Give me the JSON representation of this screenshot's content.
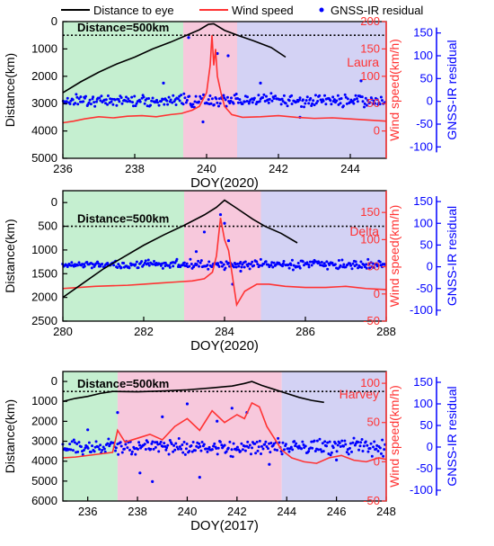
{
  "legend": {
    "distance_label": "Distance to eye",
    "wind_label": "Wind speed",
    "residual_label": "GNSS-IR residual"
  },
  "colors": {
    "distance": "#000000",
    "wind": "#ff3333",
    "residual": "#0000ff",
    "green_band": "#c5efd0",
    "pink_band": "#f7c8dc",
    "blue_band": "#d3d2f4",
    "dotted_line": "#000000"
  },
  "chart_data": [
    {
      "type": "line",
      "panel": "top",
      "storm": "Laura",
      "threshold_label": "Distance=500km",
      "threshold_km": 500,
      "xlabel": "DOY(2020)",
      "ylabel_left": "Distance(km)",
      "ylabel_right": "Wind speed(km/h)",
      "ylabel_right2": "GNSS-IR residual",
      "xlim": [
        236,
        245
      ],
      "xticks": [
        236,
        238,
        240,
        242,
        244
      ],
      "ylim_left_inverted": [
        0,
        5000
      ],
      "yticks_left": [
        0,
        1000,
        2000,
        3000,
        4000,
        5000
      ],
      "ylim_wind": [
        -50,
        200
      ],
      "yticks_wind": [
        0,
        50,
        100,
        150,
        200
      ],
      "ylim_residual": [
        -125,
        175
      ],
      "yticks_residual": [
        -100,
        -50,
        0,
        50,
        100,
        150
      ],
      "bands": [
        {
          "from": 236.0,
          "to": 239.35,
          "color": "green"
        },
        {
          "from": 239.35,
          "to": 240.85,
          "color": "pink"
        },
        {
          "from": 240.85,
          "to": 245.0,
          "color": "blue"
        }
      ],
      "series": [
        {
          "name": "Distance to eye",
          "x": [
            236.0,
            236.5,
            237.0,
            237.5,
            238.0,
            238.5,
            239.0,
            239.5,
            239.8,
            240.05,
            240.2,
            240.5,
            240.9,
            241.3,
            241.8,
            242.2
          ],
          "y": [
            2600,
            2200,
            1850,
            1550,
            1300,
            1000,
            750,
            470,
            300,
            100,
            80,
            320,
            520,
            700,
            950,
            1300
          ]
        },
        {
          "name": "Wind speed",
          "x": [
            236.0,
            236.3,
            236.6,
            237.0,
            237.4,
            237.8,
            238.2,
            238.6,
            239.0,
            239.3,
            239.6,
            239.8,
            240.0,
            240.1,
            240.15,
            240.2,
            240.25,
            240.3,
            240.4,
            240.5,
            240.7,
            241.0,
            241.5,
            242.0,
            242.5,
            243.0,
            243.5,
            244.0,
            244.5,
            245.0
          ],
          "y": [
            15,
            18,
            22,
            26,
            24,
            27,
            28,
            26,
            30,
            32,
            38,
            45,
            70,
            120,
            175,
            120,
            150,
            100,
            70,
            45,
            30,
            25,
            26,
            28,
            25,
            23,
            24,
            22,
            20,
            18
          ]
        },
        {
          "name": "GNSS-IR residual",
          "mean": 2,
          "spread": 12,
          "x_outliers": [
            238.8,
            239.5,
            239.9,
            240.3,
            240.6,
            241.5,
            242.6,
            244.3
          ],
          "y_outliers": [
            40,
            140,
            -45,
            105,
            100,
            40,
            -35,
            45
          ]
        }
      ]
    },
    {
      "type": "line",
      "panel": "middle",
      "storm": "Delta",
      "threshold_label": "Distance=500km",
      "threshold_km": 500,
      "xlabel": "DOY(2020)",
      "ylabel_left": "Distance(km)",
      "ylabel_right": "Wind speed(km/h)",
      "ylabel_right2": "GNSS-IR residual",
      "xlim": [
        280,
        288
      ],
      "xticks": [
        280,
        282,
        284,
        286,
        288
      ],
      "ylim_left_inverted": [
        -250,
        2500
      ],
      "yticks_left": [
        0,
        500,
        1000,
        1500,
        2000,
        2500
      ],
      "ylim_wind": [
        -50,
        190
      ],
      "yticks_wind": [
        -50,
        0,
        50,
        100,
        150
      ],
      "ylim_residual": [
        -125,
        175
      ],
      "yticks_residual": [
        -100,
        -50,
        0,
        50,
        100,
        150
      ],
      "bands": [
        {
          "from": 280.0,
          "to": 283.0,
          "color": "green"
        },
        {
          "from": 283.0,
          "to": 284.9,
          "color": "pink"
        },
        {
          "from": 284.9,
          "to": 288.0,
          "color": "blue"
        }
      ],
      "series": [
        {
          "name": "Distance to eye",
          "x": [
            280.0,
            280.5,
            281.0,
            281.5,
            282.0,
            282.5,
            283.0,
            283.5,
            283.8,
            284.0,
            284.3,
            284.7,
            285.0,
            285.4,
            285.8
          ],
          "y": [
            2000,
            1700,
            1400,
            1150,
            900,
            680,
            480,
            260,
            100,
            -50,
            120,
            350,
            500,
            650,
            850
          ]
        },
        {
          "name": "Wind speed",
          "x": [
            280.0,
            280.4,
            280.8,
            281.2,
            281.6,
            282.0,
            282.4,
            282.8,
            283.2,
            283.5,
            283.7,
            283.8,
            283.9,
            284.0,
            284.1,
            284.2,
            284.3,
            284.5,
            284.8,
            285.1,
            285.5,
            286.0,
            286.5,
            287.0,
            287.5,
            288.0
          ],
          "y": [
            10,
            12,
            14,
            15,
            16,
            18,
            20,
            22,
            24,
            28,
            40,
            70,
            140,
            100,
            80,
            30,
            -20,
            5,
            18,
            18,
            14,
            12,
            12,
            14,
            10,
            8
          ]
        },
        {
          "name": "GNSS-IR residual",
          "mean": 5,
          "spread": 10,
          "x_outliers": [
            283.5,
            283.9,
            284.0,
            284.1,
            284.2,
            284.4,
            283.3
          ],
          "y_outliers": [
            80,
            120,
            100,
            60,
            -40,
            -10,
            35
          ]
        }
      ]
    },
    {
      "type": "line",
      "panel": "bottom",
      "storm": "Harvey",
      "threshold_label": "Distance=500km",
      "threshold_km": 500,
      "xlabel": "DOY(2017)",
      "ylabel_left": "Distance(km)",
      "ylabel_right": "Wind speed(km/h)",
      "ylabel_right2": "GNSS-IR residual",
      "xlim": [
        235,
        248
      ],
      "xticks": [
        236,
        238,
        240,
        242,
        244,
        246,
        248
      ],
      "ylim_left_inverted": [
        -500,
        6000
      ],
      "yticks_left": [
        0,
        1000,
        2000,
        3000,
        4000,
        5000,
        6000
      ],
      "ylim_wind": [
        -50,
        115
      ],
      "yticks_wind": [
        -50,
        0,
        50,
        100
      ],
      "ylim_residual": [
        -125,
        175
      ],
      "yticks_residual": [
        -100,
        -50,
        0,
        50,
        100,
        150
      ],
      "bands": [
        {
          "from": 235.0,
          "to": 237.2,
          "color": "green"
        },
        {
          "from": 237.2,
          "to": 243.8,
          "color": "pink"
        },
        {
          "from": 243.8,
          "to": 248.0,
          "color": "blue"
        }
      ],
      "series": [
        {
          "name": "Distance to eye",
          "x": [
            235.0,
            235.5,
            236.0,
            236.5,
            237.0,
            238.0,
            239.0,
            240.0,
            241.0,
            241.8,
            242.3,
            242.6,
            243.0,
            243.5,
            244.0,
            244.5,
            245.0,
            245.5
          ],
          "y": [
            1000,
            850,
            750,
            600,
            500,
            520,
            480,
            420,
            320,
            230,
            100,
            0,
            200,
            400,
            600,
            800,
            950,
            1050
          ]
        },
        {
          "name": "Wind speed",
          "x": [
            235.0,
            235.5,
            236.0,
            236.5,
            237.0,
            237.2,
            237.5,
            238.0,
            238.5,
            239.0,
            239.5,
            240.0,
            240.5,
            241.0,
            241.5,
            242.0,
            242.3,
            242.6,
            242.9,
            243.2,
            243.5,
            243.8,
            244.2,
            244.7,
            245.2,
            245.7,
            246.2,
            246.7,
            247.2,
            247.7,
            248.0
          ],
          "y": [
            5,
            6,
            8,
            10,
            12,
            40,
            25,
            30,
            35,
            28,
            45,
            55,
            40,
            65,
            50,
            60,
            55,
            75,
            70,
            45,
            30,
            15,
            5,
            0,
            -2,
            5,
            8,
            2,
            0,
            5,
            3
          ]
        },
        {
          "name": "GNSS-IR residual",
          "mean": 0,
          "spread": 18,
          "x_outliers": [
            236.0,
            237.2,
            238.1,
            239.0,
            240.5,
            241.2,
            241.8,
            242.4,
            238.6,
            240.0,
            243.3,
            246.0
          ],
          "y_outliers": [
            40,
            80,
            -60,
            70,
            -70,
            60,
            90,
            80,
            -80,
            100,
            -40,
            -30
          ]
        }
      ]
    }
  ]
}
